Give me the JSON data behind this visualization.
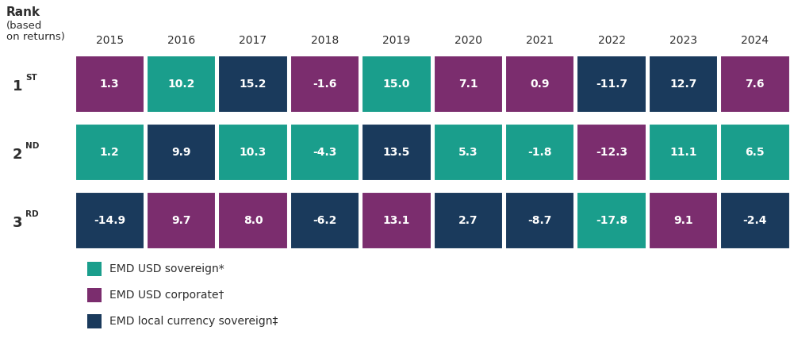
{
  "years": [
    "2015",
    "2016",
    "2017",
    "2018",
    "2019",
    "2020",
    "2021",
    "2022",
    "2023",
    "2024"
  ],
  "ranks": {
    "1st": {
      "values": [
        1.3,
        10.2,
        15.2,
        -1.6,
        15.0,
        7.1,
        0.9,
        -11.7,
        12.7,
        7.6
      ],
      "colors": [
        "#7B2D6E",
        "#1A9E8C",
        "#1A3A5C",
        "#7B2D6E",
        "#1A9E8C",
        "#7B2D6E",
        "#7B2D6E",
        "#1A3A5C",
        "#1A3A5C",
        "#7B2D6E"
      ]
    },
    "2nd": {
      "values": [
        1.2,
        9.9,
        10.3,
        -4.3,
        13.5,
        5.3,
        -1.8,
        -12.3,
        11.1,
        6.5
      ],
      "colors": [
        "#1A9E8C",
        "#1A3A5C",
        "#1A9E8C",
        "#1A9E8C",
        "#1A3A5C",
        "#1A9E8C",
        "#1A9E8C",
        "#7B2D6E",
        "#1A9E8C",
        "#1A9E8C"
      ]
    },
    "3rd": {
      "values": [
        -14.9,
        9.7,
        8.0,
        -6.2,
        13.1,
        2.7,
        -8.7,
        -17.8,
        9.1,
        -2.4
      ],
      "colors": [
        "#1A3A5C",
        "#7B2D6E",
        "#7B2D6E",
        "#1A3A5C",
        "#7B2D6E",
        "#1A3A5C",
        "#1A3A5C",
        "#1A9E8C",
        "#7B2D6E",
        "#1A3A5C"
      ]
    }
  },
  "colors": {
    "sovereign_usd": "#1A9E8C",
    "corporate_usd": "#7B2D6E",
    "local_currency": "#1A3A5C"
  },
  "legend": [
    {
      "label": "EMD USD sovereign*",
      "color": "#1A9E8C"
    },
    {
      "label": "EMD USD corporate†",
      "color": "#7B2D6E"
    },
    {
      "label": "EMD local currency sovereign‡",
      "color": "#1A3A5C"
    }
  ],
  "bg_color": "#ffffff",
  "text_color": "#ffffff",
  "header_text_color": "#2d2d2d"
}
